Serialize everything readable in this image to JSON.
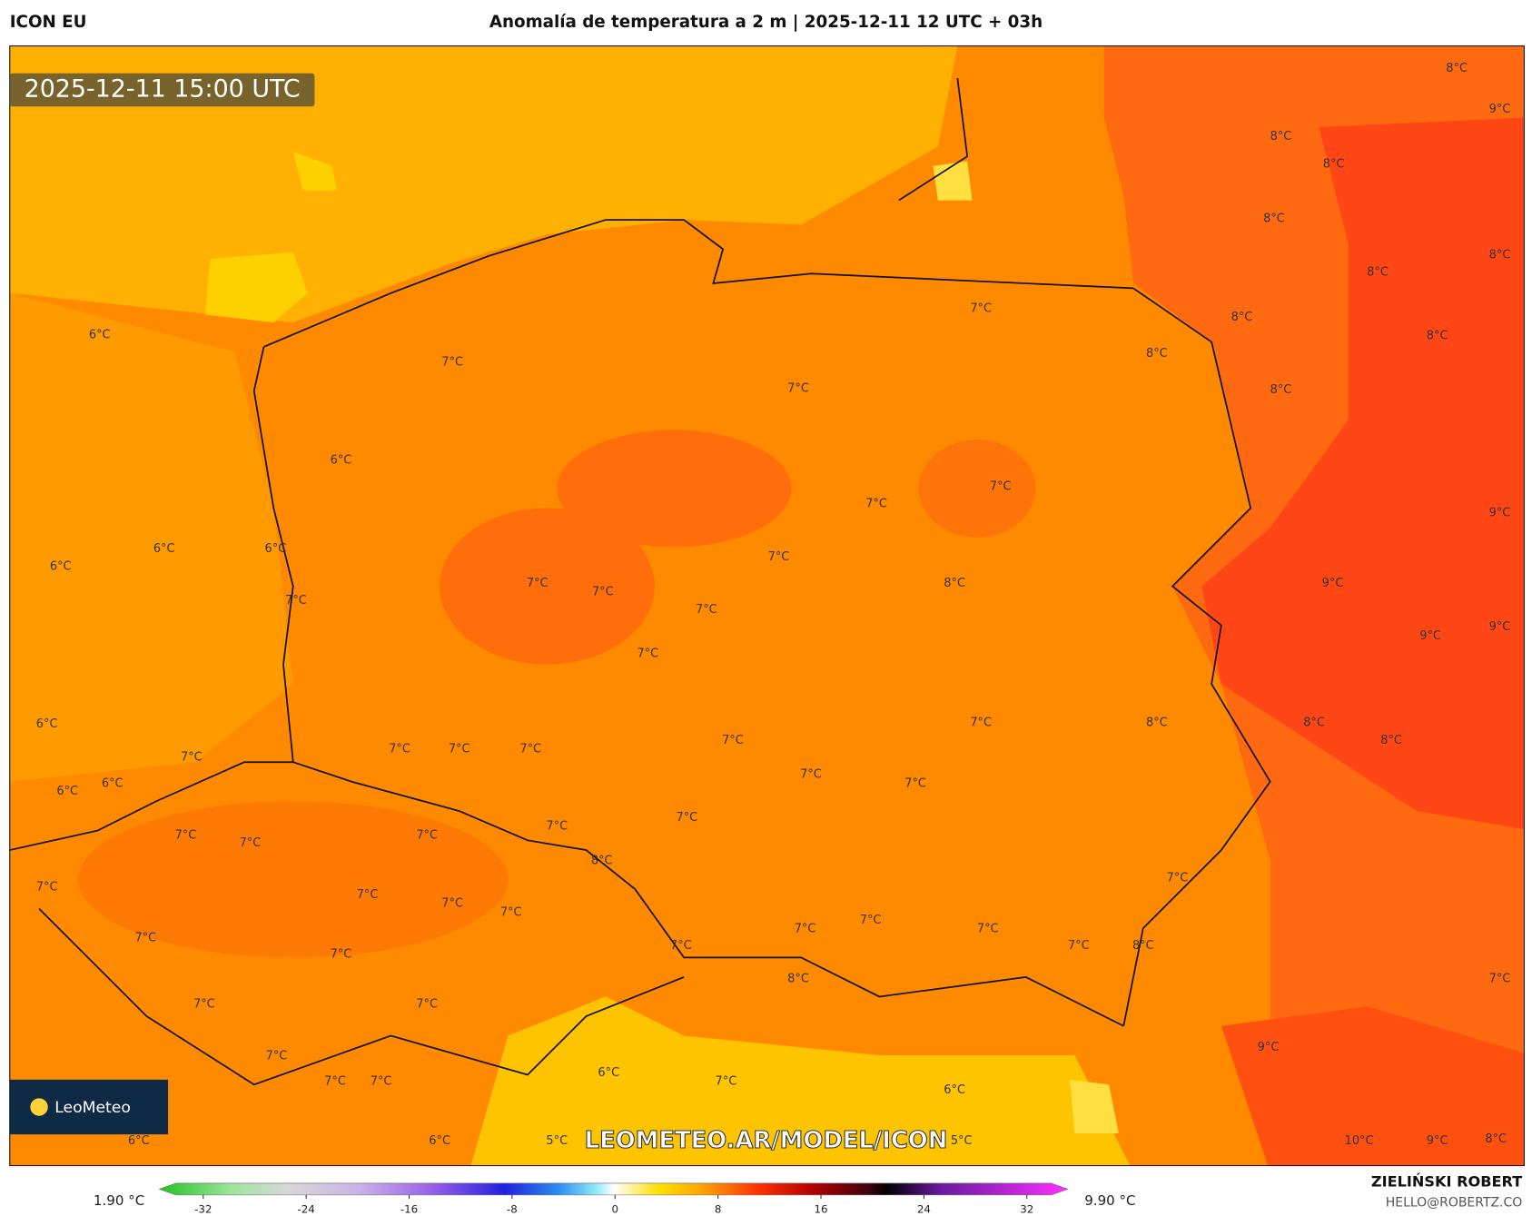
{
  "header": {
    "model": "ICON EU",
    "title": "Anomalía de temperatura a 2 m | 2025-12-11 12 UTC + 03h"
  },
  "valid_time": "2025-12-11 15:00 UTC",
  "watermark": "LEOMETEO.AR/MODEL/ICON",
  "logo": "LeoMeteo",
  "map_labels": [
    "6°C",
    "7°C",
    "7°C",
    "8°C",
    "8°C",
    "8°C",
    "8°C",
    "9°C",
    "8°C",
    "8°C",
    "8°C",
    "8°C",
    "8°C",
    "8°C",
    "7°C",
    "6°C",
    "7°C",
    "7°C",
    "9°C",
    "6°C",
    "6°C",
    "6°C",
    "7°C",
    "7°C",
    "7°C",
    "8°C",
    "9°C",
    "7°C",
    "7°C",
    "9°C",
    "9°C",
    "7°C",
    "6°C",
    "7°C",
    "8°C",
    "8°C",
    "7°C",
    "8°C",
    "7°C",
    "7°C",
    "7°C",
    "7°C",
    "6°C",
    "6°C",
    "7°C",
    "7°C",
    "7°C",
    "7°C",
    "7°C",
    "7°C",
    "7°C",
    "8°C",
    "7°C",
    "7°C",
    "7°C",
    "7°C",
    "7°C",
    "7°C",
    "7°C",
    "7°C",
    "7°C",
    "7°C",
    "7°C",
    "8°C",
    "7°C",
    "8°C",
    "7°C",
    "7°C",
    "7°C",
    "7°C",
    "9°C",
    "6°C",
    "7°C",
    "7°C",
    "7°C",
    "6°C",
    "6°C",
    "6°C",
    "5°C",
    "5°C",
    "10°C",
    "9°C",
    "8°C"
  ],
  "colorbar": {
    "min_label": "1.90 °C",
    "max_label": "9.90 °C",
    "ticks": [
      -32,
      -24,
      -16,
      -8,
      0,
      8,
      16,
      24,
      32
    ]
  },
  "footer": {
    "author": "ZIELIŃSKI ROBERT",
    "contact": "HELLO@ROBERTZ.CO"
  }
}
